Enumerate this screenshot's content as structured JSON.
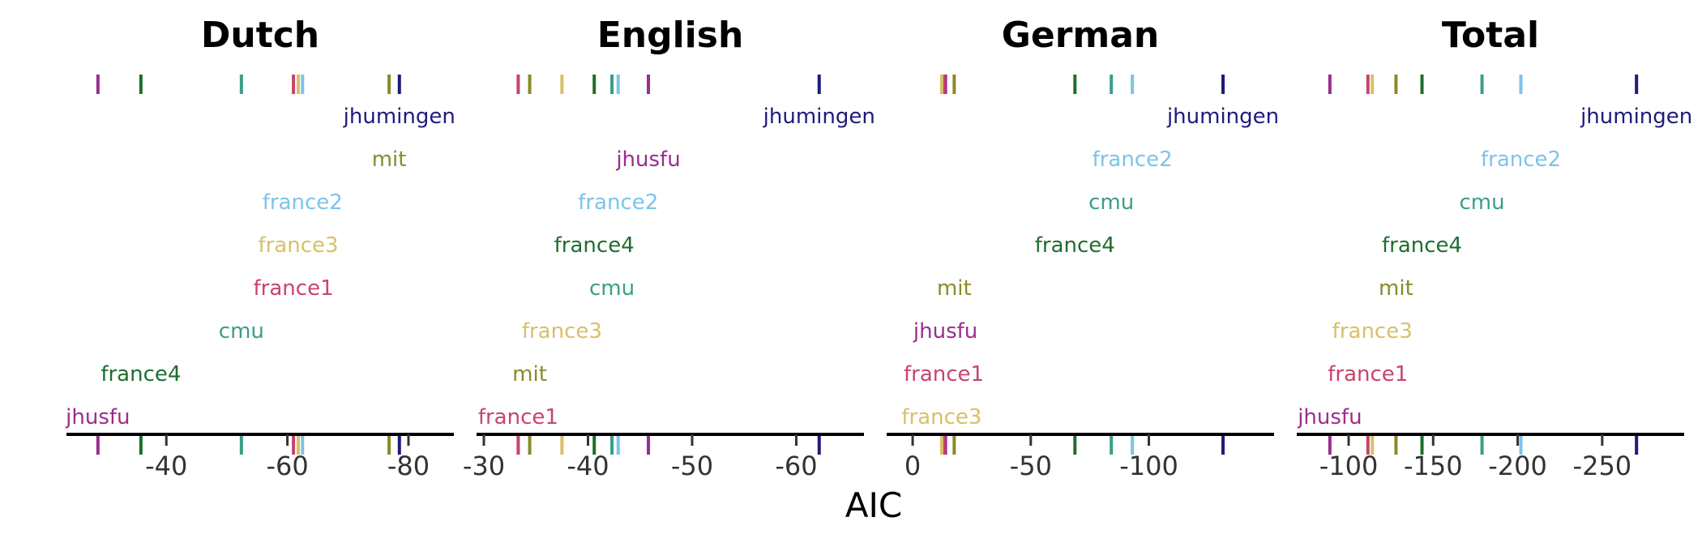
{
  "chart_data": {
    "type": "scatter",
    "xlabel": "AIC",
    "colors": {
      "jhumingen": "#1f1b7a",
      "mit": "#8a8a2a",
      "france2": "#7cc4e8",
      "france3": "#d8c06a",
      "france1": "#c8446a",
      "cmu": "#3a9e88",
      "france4": "#1e6e2e",
      "jhusfu": "#9a2e8e"
    },
    "panels": [
      {
        "title": "Dutch",
        "xlim": [
          -23.5,
          -87.5
        ],
        "ticks": [
          -40,
          -60,
          -80
        ],
        "tick_labels": [
          "-40",
          "-60",
          "-80"
        ],
        "points": [
          {
            "label": "jhumingen",
            "value": -78.5
          },
          {
            "label": "mit",
            "value": -76.8
          },
          {
            "label": "france2",
            "value": -62.5
          },
          {
            "label": "france3",
            "value": -61.8
          },
          {
            "label": "france1",
            "value": -61.0
          },
          {
            "label": "cmu",
            "value": -52.4
          },
          {
            "label": "france4",
            "value": -35.8
          },
          {
            "label": "jhusfu",
            "value": -28.7
          }
        ]
      },
      {
        "title": "English",
        "xlim": [
          -29.3,
          -66.5
        ],
        "ticks": [
          -30,
          -40,
          -50,
          -60
        ],
        "tick_labels": [
          "-30",
          "-40",
          "-50",
          "-60"
        ],
        "points": [
          {
            "label": "jhumingen",
            "value": -62.2
          },
          {
            "label": "jhusfu",
            "value": -45.8
          },
          {
            "label": "france2",
            "value": -42.9
          },
          {
            "label": "france4",
            "value": -40.6
          },
          {
            "label": "cmu",
            "value": -42.3
          },
          {
            "label": "france3",
            "value": -37.5
          },
          {
            "label": "mit",
            "value": -34.4
          },
          {
            "label": "france1",
            "value": -33.3
          }
        ]
      },
      {
        "title": "German",
        "xlim": [
          11,
          -153
        ],
        "ticks": [
          0,
          -50,
          -100
        ],
        "tick_labels": [
          "0",
          "-50",
          "-100"
        ],
        "points": [
          {
            "label": "jhumingen",
            "value": -131.4
          },
          {
            "label": "france2",
            "value": -93.0
          },
          {
            "label": "cmu",
            "value": -84.1
          },
          {
            "label": "france4",
            "value": -68.7
          },
          {
            "label": "mit",
            "value": -17.6
          },
          {
            "label": "jhusfu",
            "value": -13.9
          },
          {
            "label": "france1",
            "value": -13.2
          },
          {
            "label": "france3",
            "value": -12.3
          }
        ]
      },
      {
        "title": "Total",
        "xlim": [
          -69.3,
          -298.5
        ],
        "ticks": [
          -100,
          -150,
          -200,
          -250
        ],
        "tick_labels": [
          "-100",
          "-150",
          "-200",
          "-250"
        ],
        "points": [
          {
            "label": "jhumingen",
            "value": -270.3
          },
          {
            "label": "france2",
            "value": -201.9
          },
          {
            "label": "cmu",
            "value": -178.9
          },
          {
            "label": "france4",
            "value": -143.4
          },
          {
            "label": "mit",
            "value": -128.0
          },
          {
            "label": "france3",
            "value": -114.0
          },
          {
            "label": "france1",
            "value": -111.4
          },
          {
            "label": "jhusfu",
            "value": -88.9
          }
        ]
      }
    ]
  }
}
